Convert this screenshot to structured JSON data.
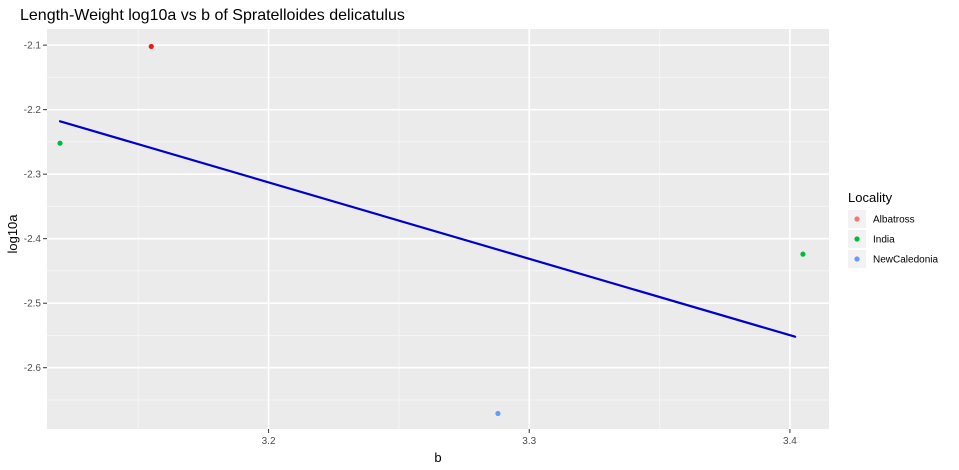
{
  "chart_data": {
    "type": "scatter",
    "title": "Length-Weight log10a vs b of Spratelloides delicatulus",
    "xlabel": "b",
    "ylabel": "log10a",
    "xlim": [
      3.115,
      3.415
    ],
    "ylim": [
      -2.695,
      -2.075
    ],
    "x_ticks": [
      3.2,
      3.3,
      3.4
    ],
    "x_tick_labels": [
      "3.2",
      "3.3",
      "3.4"
    ],
    "y_ticks": [
      -2.1,
      -2.2,
      -2.3,
      -2.4,
      -2.5,
      -2.6
    ],
    "y_tick_labels": [
      "-2.1",
      "-2.2",
      "-2.3",
      "-2.4",
      "-2.5",
      "-2.6"
    ],
    "grid": true,
    "legend": {
      "title": "Locality",
      "position": "right",
      "entries": [
        {
          "name": "Albatross",
          "color": "#F8766D"
        },
        {
          "name": "India",
          "color": "#00BA38"
        },
        {
          "name": "NewCaledonia",
          "color": "#619CFF"
        }
      ]
    },
    "points": [
      {
        "x": 3.155,
        "y": -2.102,
        "series": "Albatross",
        "color": "#E41A1C"
      },
      {
        "x": 3.12,
        "y": -2.252,
        "series": "India",
        "color": "#00BA38"
      },
      {
        "x": 3.405,
        "y": -2.424,
        "series": "India",
        "color": "#00BA38"
      },
      {
        "x": 3.288,
        "y": -2.671,
        "series": "NewCaledonia",
        "color": "#619CFF"
      }
    ],
    "fit_line": {
      "color": "#0000CC",
      "x": [
        3.12,
        3.402
      ],
      "y": [
        -2.218,
        -2.552
      ]
    },
    "colors": {
      "panel_background": "#EBEBEB",
      "grid_major": "#FFFFFF",
      "grid_minor": "#F5F5F5",
      "tick_text": "#4D4D4D"
    }
  }
}
